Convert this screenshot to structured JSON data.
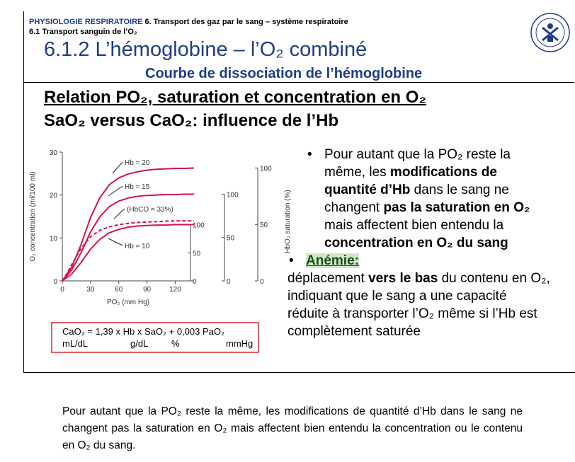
{
  "header": {
    "course": "PHYSIOLOGIE RESPIRATOIRE",
    "chapter": "6. Transport des gaz par le sang – système respiratoire",
    "section": "6.1 Transport sanguin de l’O₂"
  },
  "title": "6.1.2 L’hémoglobine – l’O₂ combiné",
  "subtitle": "Courbe de dissociation de l’hémoglobine",
  "heading1": "Relation PO₂, saturation et concentration en O₂",
  "heading2": "SaO₂ versus CaO₂: influence de l’Hb",
  "colors": {
    "curve": "#d4144a",
    "title_blue": "#1f3c88",
    "box_border": "#e06060",
    "highlight_bg": "#cfe7c6"
  },
  "chart_data": {
    "type": "line",
    "xlabel": "PO₂ (mm Hg)",
    "ylabel": "O₂ concentration (ml/100 ml)",
    "right_axis_label": "HbO₂ saturation (%)",
    "xlim": [
      0,
      140
    ],
    "ylim": [
      0,
      30
    ],
    "x_ticks": [
      0,
      30,
      60,
      90,
      120
    ],
    "y_ticks": [
      0,
      10,
      20,
      30
    ],
    "saturation_scales": [
      {
        "for_series": "Hb = 20",
        "ticks": [
          "0",
          "50",
          "100"
        ]
      },
      {
        "for_series": "Hb = 15",
        "ticks": [
          "0",
          "50",
          "100"
        ]
      },
      {
        "for_series": "Hb = 10",
        "ticks": [
          "0",
          "50",
          "100"
        ]
      }
    ],
    "series": [
      {
        "name": "Hb = 20",
        "style": "solid",
        "x": [
          0,
          10,
          20,
          30,
          40,
          50,
          60,
          70,
          80,
          90,
          100,
          110,
          120,
          130,
          140
        ],
        "y": [
          0,
          3.2,
          8.5,
          14.8,
          19.4,
          22.4,
          24.0,
          24.9,
          25.4,
          25.8,
          26.0,
          26.1,
          26.2,
          26.2,
          26.3
        ]
      },
      {
        "name": "Hb = 15",
        "style": "solid",
        "x": [
          0,
          10,
          20,
          30,
          40,
          50,
          60,
          70,
          80,
          90,
          100,
          110,
          120,
          130,
          140
        ],
        "y": [
          0,
          2.5,
          6.6,
          11.4,
          15.0,
          17.3,
          18.6,
          19.3,
          19.7,
          19.9,
          20.0,
          20.1,
          20.1,
          20.2,
          20.2
        ]
      },
      {
        "name": "(HbCO = 33%)",
        "style": "dashed",
        "x": [
          0,
          5,
          10,
          20,
          30,
          40,
          50,
          60,
          70,
          80,
          90,
          100,
          110,
          120,
          130,
          140
        ],
        "y": [
          0,
          1.8,
          3.8,
          7.6,
          10.3,
          11.8,
          12.6,
          13.1,
          13.4,
          13.6,
          13.7,
          13.8,
          13.9,
          14.0,
          14.0,
          14.0
        ]
      },
      {
        "name": "Hb = 10",
        "style": "solid",
        "x": [
          0,
          10,
          20,
          30,
          40,
          50,
          60,
          70,
          80,
          90,
          100,
          110,
          120,
          130,
          140
        ],
        "y": [
          0,
          1.6,
          4.3,
          7.4,
          9.7,
          11.2,
          12.0,
          12.5,
          12.8,
          12.9,
          13.0,
          13.0,
          13.1,
          13.1,
          13.1
        ]
      }
    ]
  },
  "formula": {
    "equation": "CaO₂ = 1,39 x Hb x SaO₂ + 0,003 PaO₂",
    "unit1": "mL/dL",
    "unit2": "g/dL",
    "unit3": "%",
    "unit4": "mmHg"
  },
  "bullets": {
    "b1_start": "Pour autant que la PO₂ reste la même, les ",
    "b1_bold1": "modifications de quantité d’Hb",
    "b1_mid": " dans le sang ne changent ",
    "b1_bold2": "pas la saturation en O₂",
    "b1_mid2": " mais affectent bien entendu la ",
    "b1_bold3": "concentration en O₂ du sang",
    "b2_label": "Anémie:",
    "b2_start": "déplacement ",
    "b2_bold": "vers le bas",
    "b2_end": " du contenu en O₂, indiquant que le sang a une capacité réduite à transporter l’O₂ même si l’Hb est complètement saturée"
  },
  "caption": "Pour autant que la PO₂ reste la même, les modifications de quantité d’Hb dans le sang ne changent pas la saturation en O₂ mais affectent bien entendu la concentration ou le contenu en O₂ du sang."
}
